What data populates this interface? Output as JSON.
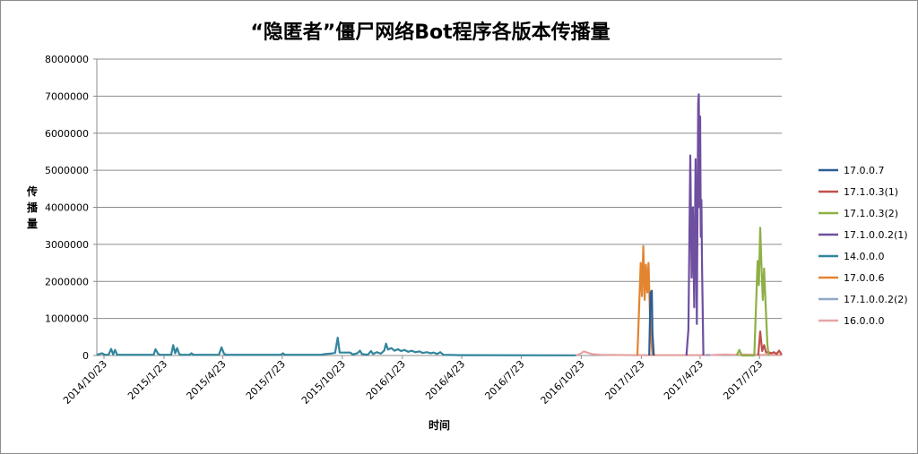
{
  "chart_data": {
    "type": "line",
    "title": "“隐匿者”僵尸网络Bot程序各版本传播量",
    "xlabel": "时间",
    "ylabel": "传播量",
    "ylim": [
      0,
      8000000
    ],
    "yticks": [
      "0",
      "1000000",
      "2000000",
      "3000000",
      "4000000",
      "5000000",
      "6000000",
      "7000000",
      "8000000"
    ],
    "xlim": [
      "2014-10-12",
      "2017-08-26"
    ],
    "xticks": [
      {
        "label": "2014/10/23",
        "date": "2014-10-23"
      },
      {
        "label": "2015/1/23",
        "date": "2015-01-23"
      },
      {
        "label": "2015/4/23",
        "date": "2015-04-23"
      },
      {
        "label": "2015/7/23",
        "date": "2015-07-23"
      },
      {
        "label": "2015/10/23",
        "date": "2015-10-23"
      },
      {
        "label": "2016/1/23",
        "date": "2016-01-23"
      },
      {
        "label": "2016/4/23",
        "date": "2016-04-23"
      },
      {
        "label": "2016/7/23",
        "date": "2016-07-23"
      },
      {
        "label": "2016/10/23",
        "date": "2016-10-23"
      },
      {
        "label": "2017/1/23",
        "date": "2017-01-23"
      },
      {
        "label": "2017/4/23",
        "date": "2017-04-23"
      },
      {
        "label": "2017/7/23",
        "date": "2017-07-23"
      }
    ],
    "grid": true,
    "legend": "right",
    "series": [
      {
        "name": "14.0.0.0",
        "color": "#31859c",
        "points": [
          [
            "2014-10-12",
            20000
          ],
          [
            "2014-10-20",
            60000
          ],
          [
            "2014-10-24",
            20000
          ],
          [
            "2014-10-30",
            20000
          ],
          [
            "2014-11-03",
            180000
          ],
          [
            "2014-11-06",
            30000
          ],
          [
            "2014-11-09",
            150000
          ],
          [
            "2014-11-12",
            20000
          ],
          [
            "2014-12-20",
            20000
          ],
          [
            "2015-01-07",
            20000
          ],
          [
            "2015-01-10",
            170000
          ],
          [
            "2015-01-14",
            40000
          ],
          [
            "2015-01-17",
            20000
          ],
          [
            "2015-02-03",
            20000
          ],
          [
            "2015-02-06",
            280000
          ],
          [
            "2015-02-09",
            60000
          ],
          [
            "2015-02-12",
            200000
          ],
          [
            "2015-02-15",
            40000
          ],
          [
            "2015-02-18",
            20000
          ],
          [
            "2015-03-03",
            20000
          ],
          [
            "2015-03-06",
            60000
          ],
          [
            "2015-03-09",
            20000
          ],
          [
            "2015-04-17",
            20000
          ],
          [
            "2015-04-21",
            220000
          ],
          [
            "2015-04-25",
            40000
          ],
          [
            "2015-04-28",
            20000
          ],
          [
            "2015-07-21",
            20000
          ],
          [
            "2015-07-24",
            60000
          ],
          [
            "2015-07-27",
            20000
          ],
          [
            "2015-09-20",
            20000
          ],
          [
            "2015-09-27",
            40000
          ],
          [
            "2015-10-05",
            50000
          ],
          [
            "2015-10-12",
            70000
          ],
          [
            "2015-10-16",
            480000
          ],
          [
            "2015-10-19",
            80000
          ],
          [
            "2015-11-04",
            80000
          ],
          [
            "2015-11-08",
            30000
          ],
          [
            "2015-11-15",
            60000
          ],
          [
            "2015-11-19",
            130000
          ],
          [
            "2015-11-22",
            40000
          ],
          [
            "2015-12-01",
            20000
          ],
          [
            "2015-12-06",
            120000
          ],
          [
            "2015-12-09",
            40000
          ],
          [
            "2015-12-15",
            90000
          ],
          [
            "2015-12-21",
            50000
          ],
          [
            "2015-12-26",
            130000
          ],
          [
            "2015-12-29",
            320000
          ],
          [
            "2016-01-01",
            160000
          ],
          [
            "2016-01-06",
            200000
          ],
          [
            "2016-01-11",
            130000
          ],
          [
            "2016-01-16",
            170000
          ],
          [
            "2016-01-21",
            120000
          ],
          [
            "2016-01-26",
            150000
          ],
          [
            "2016-02-01",
            100000
          ],
          [
            "2016-02-06",
            130000
          ],
          [
            "2016-02-12",
            90000
          ],
          [
            "2016-02-18",
            110000
          ],
          [
            "2016-02-23",
            70000
          ],
          [
            "2016-03-01",
            90000
          ],
          [
            "2016-03-06",
            60000
          ],
          [
            "2016-03-11",
            80000
          ],
          [
            "2016-03-16",
            40000
          ],
          [
            "2016-03-21",
            90000
          ],
          [
            "2016-03-26",
            20000
          ],
          [
            "2016-04-20",
            10000
          ],
          [
            "2016-10-15",
            5000
          ]
        ]
      },
      {
        "name": "16.0.0.0",
        "color": "#e6a3a3",
        "points": [
          [
            "2016-10-15",
            0
          ],
          [
            "2016-10-22",
            50000
          ],
          [
            "2016-10-27",
            110000
          ],
          [
            "2016-11-01",
            80000
          ],
          [
            "2016-11-08",
            40000
          ],
          [
            "2016-11-22",
            20000
          ],
          [
            "2017-01-10",
            10000
          ],
          [
            "2017-04-20",
            10000
          ],
          [
            "2017-05-15",
            15000
          ],
          [
            "2017-06-01",
            30000
          ],
          [
            "2017-06-12",
            20000
          ],
          [
            "2017-07-01",
            30000
          ],
          [
            "2017-07-20",
            20000
          ],
          [
            "2017-08-26",
            20000
          ]
        ]
      },
      {
        "name": "17.0.0.6",
        "color": "#e3842f",
        "points": [
          [
            "2017-01-17",
            0
          ],
          [
            "2017-01-22",
            2500000
          ],
          [
            "2017-01-24",
            1600000
          ],
          [
            "2017-01-26",
            2950000
          ],
          [
            "2017-01-28",
            1500000
          ],
          [
            "2017-01-30",
            2450000
          ],
          [
            "2017-02-01",
            1700000
          ],
          [
            "2017-02-03",
            2500000
          ],
          [
            "2017-02-05",
            1200000
          ],
          [
            "2017-02-07",
            500000
          ],
          [
            "2017-02-09",
            0
          ]
        ]
      },
      {
        "name": "17.0.0.7",
        "color": "#2e5c95",
        "points": [
          [
            "2017-02-04",
            0
          ],
          [
            "2017-02-06",
            1700000
          ],
          [
            "2017-02-08",
            1750000
          ],
          [
            "2017-02-09",
            600000
          ],
          [
            "2017-02-11",
            0
          ]
        ]
      },
      {
        "name": "17.1.0.0.2(1)",
        "color": "#6f4fa0",
        "points": [
          [
            "2017-04-02",
            0
          ],
          [
            "2017-04-05",
            700000
          ],
          [
            "2017-04-08",
            5400000
          ],
          [
            "2017-04-10",
            2100000
          ],
          [
            "2017-04-12",
            4000000
          ],
          [
            "2017-04-14",
            1300000
          ],
          [
            "2017-04-16",
            5300000
          ],
          [
            "2017-04-18",
            850000
          ],
          [
            "2017-04-20",
            6800000
          ],
          [
            "2017-04-21",
            7050000
          ],
          [
            "2017-04-22",
            4000000
          ],
          [
            "2017-04-23",
            6450000
          ],
          [
            "2017-04-24",
            3200000
          ],
          [
            "2017-04-25",
            4200000
          ],
          [
            "2017-04-26",
            2400000
          ],
          [
            "2017-04-28",
            0
          ]
        ]
      },
      {
        "name": "17.1.0.3(1)",
        "color": "#c0504d",
        "points": [
          [
            "2017-07-21",
            0
          ],
          [
            "2017-07-24",
            650000
          ],
          [
            "2017-07-27",
            120000
          ],
          [
            "2017-07-30",
            280000
          ],
          [
            "2017-08-02",
            80000
          ],
          [
            "2017-08-06",
            90000
          ],
          [
            "2017-08-10",
            60000
          ],
          [
            "2017-08-14",
            90000
          ],
          [
            "2017-08-18",
            40000
          ],
          [
            "2017-08-22",
            130000
          ],
          [
            "2017-08-26",
            20000
          ]
        ]
      },
      {
        "name": "17.1.0.3(2)",
        "color": "#8db045",
        "points": [
          [
            "2017-06-18",
            0
          ],
          [
            "2017-06-22",
            150000
          ],
          [
            "2017-06-26",
            0
          ],
          [
            "2017-07-15",
            0
          ],
          [
            "2017-07-20",
            2550000
          ],
          [
            "2017-07-22",
            1900000
          ],
          [
            "2017-07-24",
            3450000
          ],
          [
            "2017-07-26",
            2400000
          ],
          [
            "2017-07-28",
            1500000
          ],
          [
            "2017-07-30",
            2350000
          ],
          [
            "2017-08-01",
            1500000
          ],
          [
            "2017-08-04",
            300000
          ],
          [
            "2017-08-06",
            0
          ]
        ]
      },
      {
        "name": "17.1.0.0.2(2)",
        "color": "#8fa8c8",
        "points": [
          [
            "2017-05-02",
            0
          ],
          [
            "2017-05-05",
            20000
          ],
          [
            "2017-05-08",
            0
          ]
        ]
      }
    ],
    "legend_order": [
      "17.0.0.7",
      "17.1.0.3(1)",
      "17.1.0.3(2)",
      "17.1.0.0.2(1)",
      "14.0.0.0",
      "17.0.0.6",
      "17.1.0.0.2(2)",
      "16.0.0.0"
    ]
  }
}
